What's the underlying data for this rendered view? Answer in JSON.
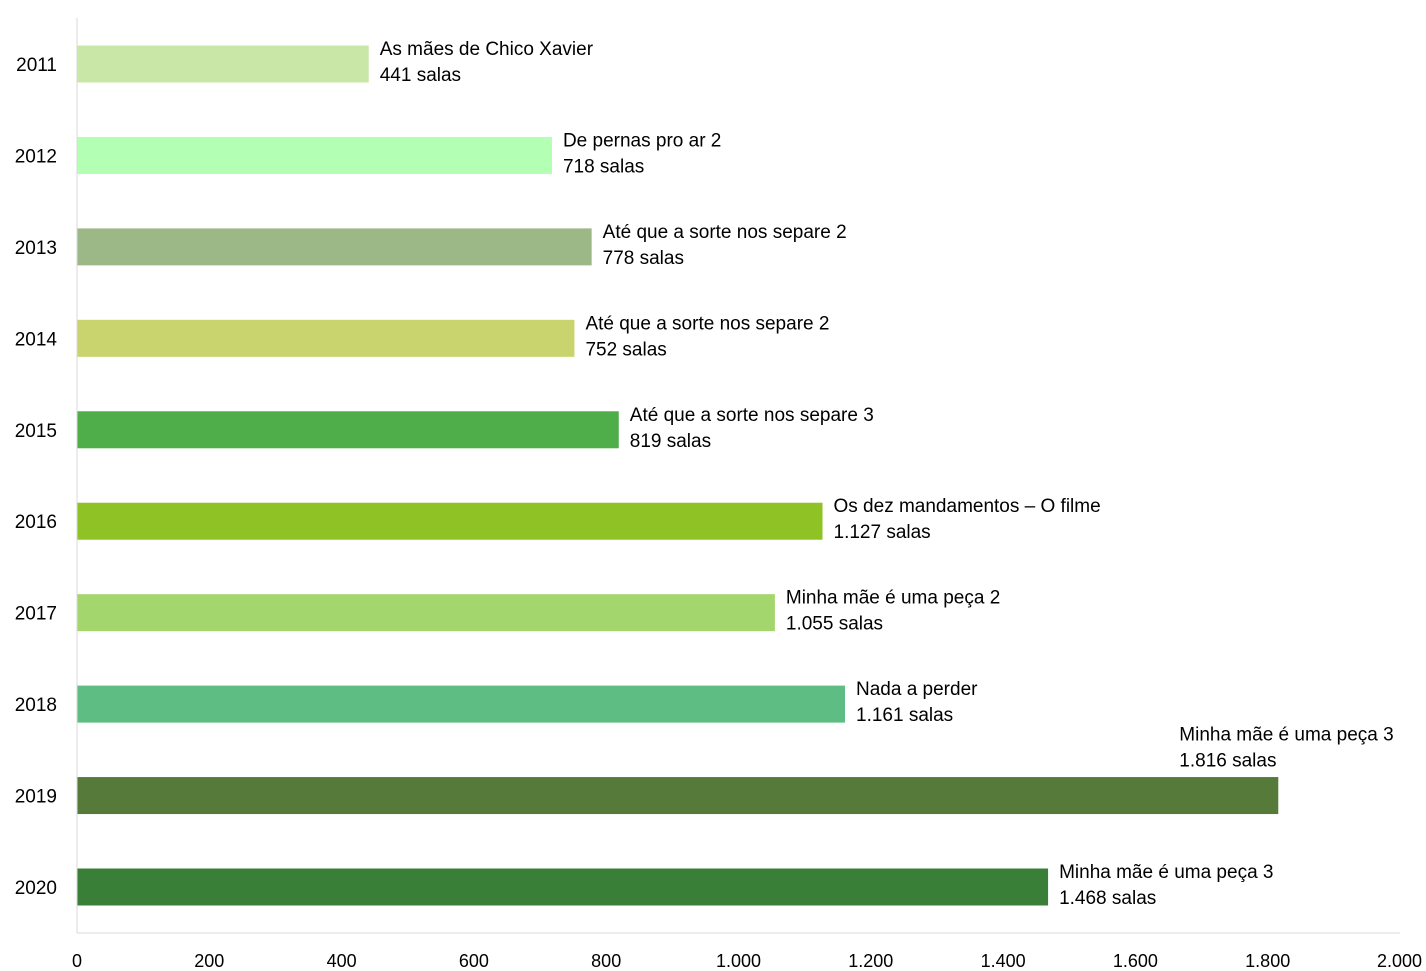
{
  "chart_data": {
    "type": "bar",
    "orientation": "horizontal",
    "title": "",
    "xlabel": "",
    "ylabel": "",
    "xlim": [
      0,
      2000
    ],
    "x_ticks": [
      0,
      200,
      400,
      600,
      800,
      1000,
      1200,
      1400,
      1600,
      1800,
      2000
    ],
    "x_tick_labels": [
      "0",
      "200",
      "400",
      "600",
      "800",
      "1.000",
      "1.200",
      "1.400",
      "1.600",
      "1.800",
      "2.000"
    ],
    "grid": false,
    "legend": "none",
    "categories": [
      "2011",
      "2012",
      "2013",
      "2014",
      "2015",
      "2016",
      "2017",
      "2018",
      "2019",
      "2020"
    ],
    "values": [
      441,
      718,
      778,
      752,
      819,
      1127,
      1055,
      1161,
      1816,
      1468
    ],
    "annotations": [
      {
        "title": "As mães de Chico Xavier",
        "value_label": "441 salas"
      },
      {
        "title": "De pernas pro ar 2",
        "value_label": "718 salas"
      },
      {
        "title": "Até que a sorte nos separe 2",
        "value_label": "778 salas"
      },
      {
        "title": "Até que a sorte nos separe 2",
        "value_label": "752 salas"
      },
      {
        "title": "Até que a sorte nos separe 3",
        "value_label": "819 salas"
      },
      {
        "title": "Os dez mandamentos – O filme",
        "value_label": "1.127 salas"
      },
      {
        "title": "Minha mãe é uma peça 2",
        "value_label": "1.055 salas"
      },
      {
        "title": "Nada a perder",
        "value_label": "1.161 salas"
      },
      {
        "title": "Minha mãe é uma peça 3",
        "value_label": "1.816 salas"
      },
      {
        "title": "Minha mãe é uma peça 3",
        "value_label": "1.468 salas"
      }
    ],
    "colors": [
      "#c9e7a6",
      "#b3ffb3",
      "#9bb886",
      "#cad46e",
      "#4fae4a",
      "#8fc224",
      "#a3d66c",
      "#5ebd82",
      "#557a3a",
      "#3a7f38"
    ]
  }
}
